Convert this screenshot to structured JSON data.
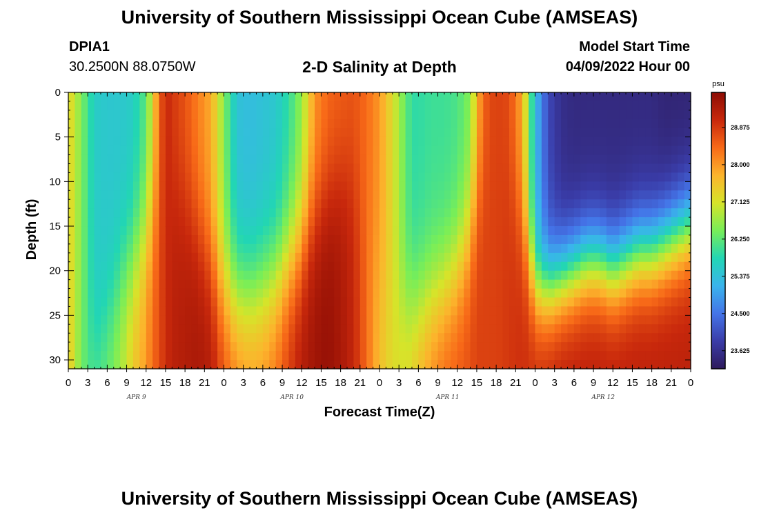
{
  "page": {
    "title": "University of Southern Mississippi Ocean Cube (AMSEAS)",
    "title_repeat": "University of Southern Mississippi Ocean Cube (AMSEAS)",
    "station": "DPIA1",
    "coords": "30.2500N  88.0750W",
    "subtitle": "2-D Salinity at Depth",
    "model_start_label": "Model Start Time",
    "model_start_value": "04/09/2022 Hour 00"
  },
  "chart_data": {
    "type": "heatmap",
    "title": "2-D Salinity at Depth",
    "xlabel": "Forecast Time(Z)",
    "ylabel": "Depth (ft)",
    "x_tick_labels": [
      "0",
      "3",
      "6",
      "9",
      "12",
      "15",
      "18",
      "21",
      "0",
      "3",
      "6",
      "9",
      "12",
      "15",
      "18",
      "21",
      "0",
      "3",
      "6",
      "9",
      "12",
      "15",
      "18",
      "21",
      "0",
      "3",
      "6",
      "9",
      "12",
      "15",
      "18",
      "21",
      "0"
    ],
    "day_labels": [
      "APR 9",
      "APR 10",
      "APR 11",
      "APR 12"
    ],
    "x_range_hours": [
      0,
      96
    ],
    "y_ticks": [
      0,
      5,
      10,
      15,
      20,
      25,
      30
    ],
    "y_range_ft": [
      0,
      31
    ],
    "colorbar": {
      "unit": "psu",
      "ticks": [
        "28.875",
        "28.000",
        "27.125",
        "26.250",
        "25.375",
        "24.500",
        "23.625"
      ],
      "range": [
        23.2,
        29.7
      ]
    },
    "colormap": [
      "#2e1a5c",
      "#3a3ca8",
      "#4474e8",
      "#3ab4ec",
      "#22d6b4",
      "#78ee58",
      "#d6e42a",
      "#fcb42c",
      "#f86a18",
      "#c8280c",
      "#8c0c04"
    ],
    "salinity_profile": {
      "hours": [
        0,
        2,
        4,
        6,
        8,
        10,
        12,
        13,
        14,
        15,
        16,
        18,
        20,
        22,
        23,
        24,
        26,
        28,
        30,
        32,
        34,
        36,
        37,
        38,
        40,
        42,
        44,
        46,
        48,
        50,
        52,
        53,
        54,
        56,
        58,
        60,
        62,
        63,
        64,
        65,
        66,
        68,
        70,
        72,
        74,
        76,
        78,
        80,
        82,
        84,
        86,
        88,
        90,
        92,
        94,
        96
      ],
      "surface": [
        27.4,
        26.5,
        25.6,
        25.5,
        25.5,
        25.6,
        26.2,
        27.2,
        28.4,
        29.1,
        28.9,
        28.6,
        28.2,
        27.8,
        27.2,
        26.5,
        25.4,
        25.3,
        25.4,
        25.5,
        25.9,
        26.6,
        27.3,
        28.0,
        28.4,
        28.5,
        28.6,
        28.4,
        28.0,
        27.2,
        26.3,
        25.9,
        25.9,
        26.0,
        26.0,
        26.1,
        26.5,
        27.6,
        28.4,
        28.7,
        28.8,
        28.7,
        27.8,
        25.3,
        24.0,
        23.6,
        23.5,
        23.5,
        23.5,
        23.5,
        23.5,
        23.5,
        23.5,
        23.4,
        23.4,
        23.4
      ],
      "bottom": [
        27.7,
        26.3,
        26.3,
        26.4,
        26.8,
        27.5,
        28.0,
        28.4,
        28.7,
        29.0,
        29.2,
        29.3,
        29.4,
        29.3,
        29.0,
        28.7,
        28.3,
        28.1,
        28.1,
        28.4,
        28.9,
        29.3,
        29.4,
        29.5,
        29.6,
        29.4,
        29.1,
        28.4,
        27.6,
        27.2,
        27.3,
        27.5,
        27.8,
        28.2,
        28.5,
        28.6,
        28.7,
        28.8,
        28.8,
        28.8,
        28.8,
        28.9,
        29.0,
        29.0,
        29.1,
        29.2,
        29.2,
        29.2,
        29.2,
        29.2,
        29.2,
        29.2,
        29.2,
        29.2,
        29.2,
        29.2
      ],
      "mixing_depth_ft": [
        30,
        30,
        30,
        25,
        21,
        19,
        16,
        14,
        13,
        12,
        12,
        13,
        16,
        19,
        21,
        22,
        23,
        23,
        22,
        21,
        19,
        17,
        15,
        14,
        12,
        10,
        10,
        14,
        20,
        23,
        24,
        24,
        24,
        23,
        22,
        20,
        16,
        12,
        10,
        8,
        7,
        10,
        15,
        22,
        22,
        21,
        20,
        19,
        19,
        20,
        19,
        18,
        18,
        17,
        16,
        15
      ],
      "sharpness_ft": [
        4,
        4,
        4,
        4,
        4,
        4,
        4,
        4,
        4,
        4,
        4,
        4,
        4,
        4,
        4,
        4,
        4,
        4,
        4,
        4,
        4,
        4,
        4,
        4,
        4,
        4,
        4,
        4,
        4,
        4,
        4,
        4,
        4,
        4,
        4,
        4,
        4,
        4,
        4,
        4,
        4,
        4,
        4,
        3,
        3,
        3,
        3,
        3,
        3,
        3,
        3,
        3,
        3,
        3,
        3,
        3
      ]
    }
  }
}
